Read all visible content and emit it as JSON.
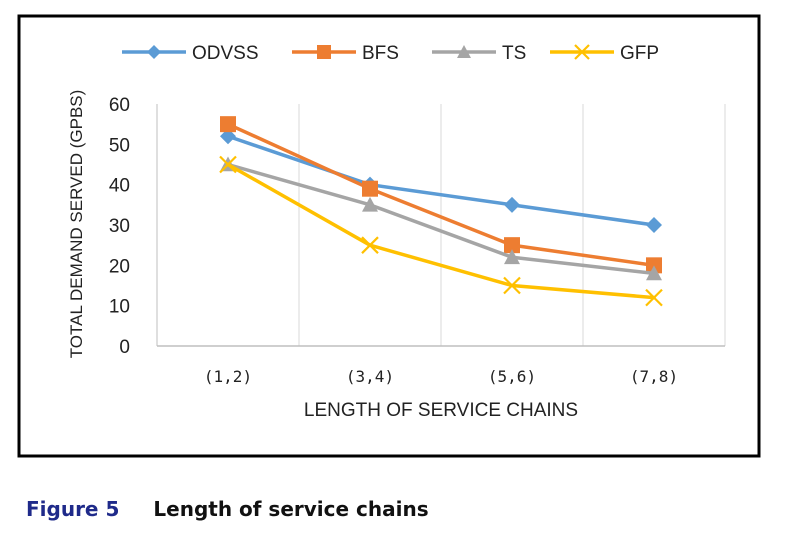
{
  "chart_data": {
    "type": "line",
    "categories": [
      "(1,2)",
      "(3,4)",
      "(5,6)",
      "(7,8)"
    ],
    "series": [
      {
        "name": "ODVSS",
        "values": [
          52,
          40,
          35,
          30
        ],
        "color": "#5b9bd5",
        "marker": "diamond"
      },
      {
        "name": "BFS",
        "values": [
          55,
          39,
          25,
          20
        ],
        "color": "#ed7d31",
        "marker": "square"
      },
      {
        "name": "TS",
        "values": [
          45,
          35,
          22,
          18
        ],
        "color": "#a5a5a5",
        "marker": "triangle"
      },
      {
        "name": "GFP",
        "values": [
          45,
          25,
          15,
          12
        ],
        "color": "#ffc000",
        "marker": "x"
      }
    ],
    "ylim": [
      0,
      60
    ],
    "yticks": [
      0,
      10,
      20,
      30,
      40,
      50,
      60
    ],
    "xlabel": "LENGTH OF SERVICE CHAINS",
    "ylabel": "TOTAL DEMAND SERVED (GPBS)",
    "legend": "top",
    "grid": "vertical"
  },
  "caption": {
    "number": "Figure 5",
    "title": "Length of service chains"
  }
}
